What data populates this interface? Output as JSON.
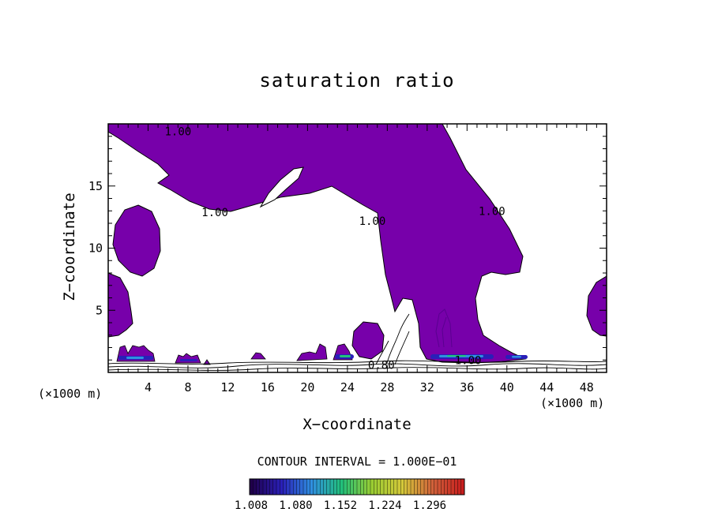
{
  "chart_data": {
    "type": "contour",
    "title": "saturation ratio",
    "xlabel": "X−coordinate",
    "ylabel": "Z−coordinate",
    "x_unit_left": "(×1000 m)",
    "x_unit_right": "(×1000 m)",
    "xlim": [
      0,
      50
    ],
    "ylim": [
      0,
      20
    ],
    "x_ticks": [
      4,
      8,
      12,
      16,
      20,
      24,
      28,
      32,
      36,
      40,
      44,
      48
    ],
    "y_ticks": [
      5,
      10,
      15
    ],
    "contour_interval_text": "CONTOUR INTERVAL = 1.000E−01",
    "contour_labels": [
      {
        "text": "1.00",
        "x": 7.0,
        "y": 19.4
      },
      {
        "text": "1.00",
        "x": 10.7,
        "y": 12.9
      },
      {
        "text": "1.00",
        "x": 26.5,
        "y": 12.2
      },
      {
        "text": "1.00",
        "x": 38.5,
        "y": 13.0
      },
      {
        "text": "0.80",
        "x": 27.4,
        "y": 0.6
      },
      {
        "text": "1.00",
        "x": 36.1,
        "y": 1.0
      }
    ],
    "colorbar": {
      "tick_labels": [
        "1.008",
        "1.080",
        "1.152",
        "1.224",
        "1.296"
      ],
      "colors": [
        "#20004a",
        "#2a1fb8",
        "#2f8fe0",
        "#22c07a",
        "#9acd32",
        "#d4c83a",
        "#d0623a",
        "#c81e1e"
      ]
    },
    "fill_color": "#7700aa"
  }
}
